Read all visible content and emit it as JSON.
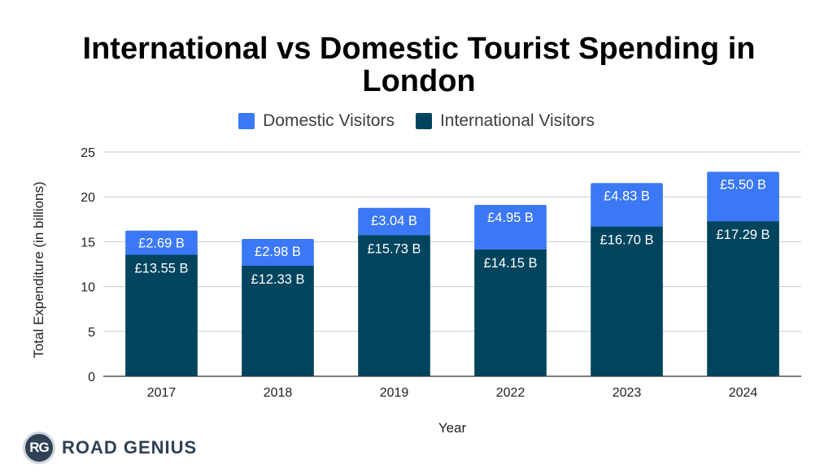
{
  "chart_data": {
    "type": "bar",
    "stacked": true,
    "title": "International vs Domestic Tourist Spending in London",
    "xlabel": "Year",
    "ylabel": "Total Expenditure (in billions)",
    "ylim": [
      0,
      25
    ],
    "yticks": [
      0,
      5,
      10,
      15,
      20,
      25
    ],
    "grid": true,
    "legend_position": "top-center",
    "categories": [
      "2017",
      "2018",
      "2019",
      "2022",
      "2023",
      "2024"
    ],
    "series": [
      {
        "name": "International Visitors",
        "color": "#00445e",
        "values": [
          13.55,
          12.33,
          15.73,
          14.15,
          16.7,
          17.29
        ],
        "labels": [
          "£13.55 B",
          "£12.33 B",
          "£15.73 B",
          "£14.15 B",
          "£16.70 B",
          "£17.29 B"
        ]
      },
      {
        "name": "Domestic Visitors",
        "color": "#3b78f5",
        "values": [
          2.69,
          2.98,
          3.04,
          4.95,
          4.83,
          5.5
        ],
        "labels": [
          "£2.69 B",
          "£2.98 B",
          "£3.04 B",
          "£4.95 B",
          "£4.83 B",
          "£5.50 B"
        ]
      }
    ],
    "legend_order": [
      "Domestic Visitors",
      "International Visitors"
    ]
  },
  "branding": {
    "badge": "RG",
    "name": "ROAD GENIUS"
  }
}
